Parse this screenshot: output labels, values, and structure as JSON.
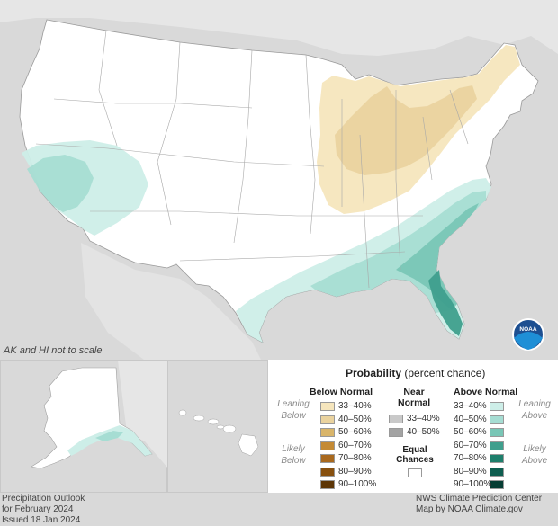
{
  "scale_note": "AK and HI not to scale",
  "legend": {
    "title_bold": "Probability",
    "title_rest": " (percent chance)",
    "below": {
      "header": "Below Normal",
      "leaning": "Leaning Below",
      "likely": "Likely Below",
      "items": [
        {
          "label": "33–40%",
          "color": "#f6e6bd"
        },
        {
          "label": "40–50%",
          "color": "#ead39f"
        },
        {
          "label": "50–60%",
          "color": "#d9b56a"
        },
        {
          "label": "60–70%",
          "color": "#c48a34"
        },
        {
          "label": "70–80%",
          "color": "#a9691e"
        },
        {
          "label": "80–90%",
          "color": "#87500f"
        },
        {
          "label": "90–100%",
          "color": "#5c3506"
        }
      ]
    },
    "near": {
      "header_line1": "Near",
      "header_line2": "Normal",
      "items": [
        {
          "label": "33–40%",
          "color": "#c9c9c9"
        },
        {
          "label": "40–50%",
          "color": "#a3a3a3"
        }
      ],
      "equal_line1": "Equal",
      "equal_line2": "Chances",
      "equal_color": "#ffffff"
    },
    "above": {
      "header": "Above Normal",
      "leaning": "Leaning Above",
      "likely": "Likely Above",
      "items": [
        {
          "label": "33–40%",
          "color": "#cdeee8"
        },
        {
          "label": "40–50%",
          "color": "#a6ddd3"
        },
        {
          "label": "50–60%",
          "color": "#79c6b6"
        },
        {
          "label": "60–70%",
          "color": "#3f9f8d"
        },
        {
          "label": "70–80%",
          "color": "#1e7f6c"
        },
        {
          "label": "80–90%",
          "color": "#0f5e50"
        },
        {
          "label": "90–100%",
          "color": "#063d33"
        }
      ]
    }
  },
  "footer_left": {
    "line1": "Precipitation Outlook",
    "line2": "for February 2024",
    "line3": "Issued 18 Jan 2024"
  },
  "footer_right": {
    "line1": "NWS Climate Prediction Center",
    "line2": "Map by NOAA Climate.gov"
  },
  "logo_text": "NOAA",
  "colors": {
    "background": "#d9d9d9",
    "land": "#ffffff",
    "below_leaning": "#f6e6bd",
    "below_40_50": "#ead39f",
    "above_leaning": "#cdeee8",
    "above_40_50": "#a6ddd3",
    "above_50_60": "#79c6b6",
    "above_60_70": "#3f9f8d"
  }
}
